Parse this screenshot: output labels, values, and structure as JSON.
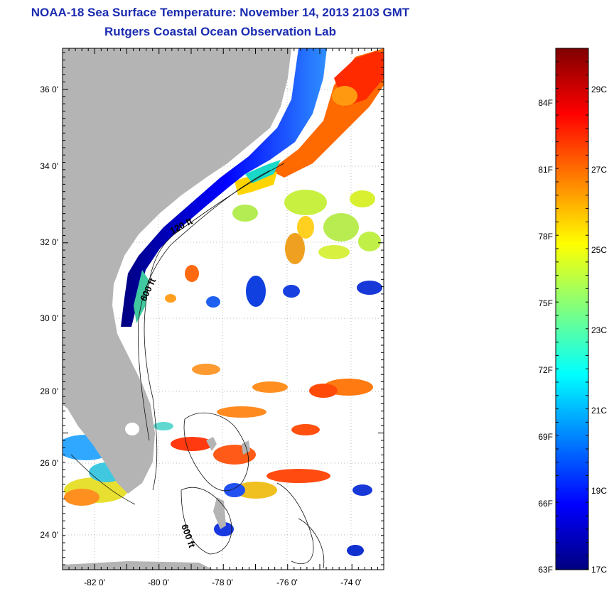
{
  "header": {
    "title": "NOAA-18 Sea Surface Temperature:  November 14, 2013 2103 GMT",
    "subtitle": "Rutgers Coastal Ocean Observation Lab"
  },
  "map": {
    "lat_labels": [
      "36 0'",
      "34 0'",
      "32 0'",
      "30 0'",
      "28 0'",
      "26 0'",
      "24 0'"
    ],
    "lon_labels": [
      "-82 0'",
      "-80 0'",
      "-78 0'",
      "-76 0'",
      "-74 0'"
    ],
    "lat_range": [
      23,
      37.1
    ],
    "lon_range": [
      -83,
      -73
    ],
    "land_color": "#b4b4b4",
    "depth_labels": [
      "120 ft",
      "600 ft",
      "600 ft"
    ]
  },
  "colorbar": {
    "fahrenheit_labels": [
      "84F",
      "81F",
      "78F",
      "75F",
      "72F",
      "69F",
      "66F",
      "63F"
    ],
    "celsius_labels": [
      "29C",
      "27C",
      "25C",
      "23C",
      "21C",
      "19C",
      "17C"
    ],
    "range_c": [
      17,
      30
    ],
    "colors": [
      "#00007f",
      "#0000ff",
      "#007fff",
      "#00ffff",
      "#7fff7f",
      "#ffff00",
      "#ff7f00",
      "#ff0000",
      "#7f0000"
    ]
  }
}
